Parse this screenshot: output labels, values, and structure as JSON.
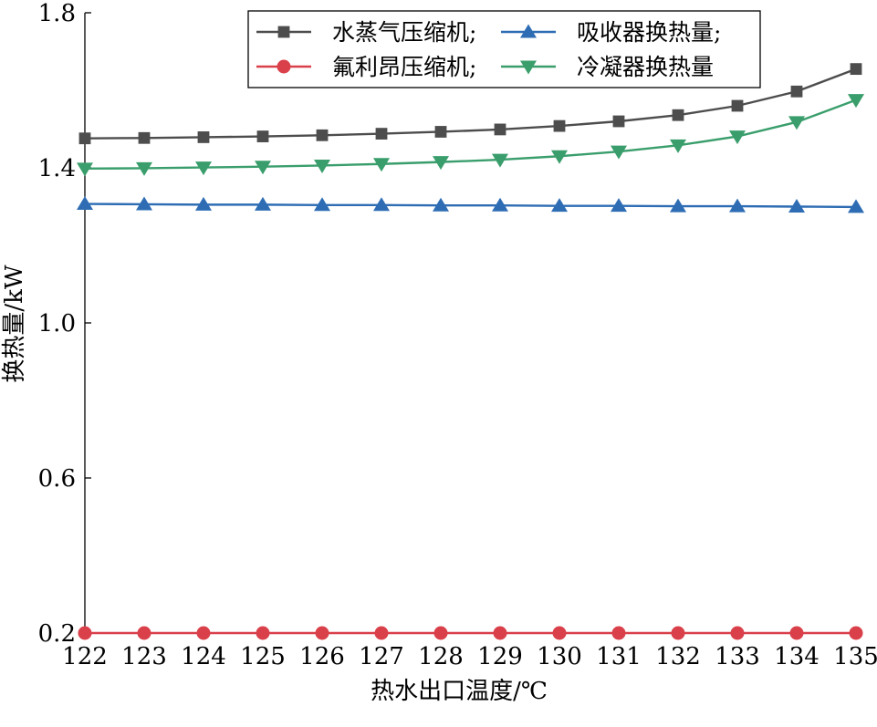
{
  "chart_data": {
    "type": "line",
    "xlabel": "热水出口温度/℃",
    "ylabel": "换热量/kW",
    "x": [
      122,
      123,
      124,
      125,
      126,
      127,
      128,
      129,
      130,
      131,
      132,
      133,
      134,
      135
    ],
    "xlim": [
      122,
      135
    ],
    "ylim": [
      0.2,
      1.8
    ],
    "y_ticks": [
      "0.2",
      "0.6",
      "1.0",
      "1.4",
      "1.8"
    ],
    "x_ticks": [
      "122",
      "123",
      "124",
      "125",
      "126",
      "127",
      "128",
      "129",
      "130",
      "131",
      "132",
      "133",
      "134",
      "135"
    ],
    "grid": false,
    "legend_position": "top-right",
    "series": [
      {
        "name": "水蒸气压缩机;",
        "color": "#4d4d4d",
        "marker": "square",
        "values": [
          1.476,
          1.477,
          1.479,
          1.481,
          1.484,
          1.488,
          1.493,
          1.499,
          1.508,
          1.52,
          1.536,
          1.56,
          1.597,
          1.655
        ]
      },
      {
        "name": "吸收器换热量;",
        "color": "#2e6db4",
        "marker": "triangle-up",
        "values": [
          1.307,
          1.306,
          1.305,
          1.305,
          1.304,
          1.304,
          1.303,
          1.303,
          1.302,
          1.302,
          1.301,
          1.301,
          1.3,
          1.299
        ]
      },
      {
        "name": "氟利昂压缩机;",
        "color": "#d9404a",
        "marker": "circle",
        "values": [
          0.2,
          0.2,
          0.2,
          0.2,
          0.2,
          0.2,
          0.2,
          0.2,
          0.2,
          0.2,
          0.2,
          0.2,
          0.2,
          0.2
        ]
      },
      {
        "name": "冷凝器换热量",
        "color": "#3a9e6c",
        "marker": "triangle-down",
        "values": [
          1.398,
          1.399,
          1.401,
          1.403,
          1.406,
          1.41,
          1.415,
          1.421,
          1.43,
          1.442,
          1.458,
          1.481,
          1.518,
          1.575
        ]
      }
    ]
  }
}
